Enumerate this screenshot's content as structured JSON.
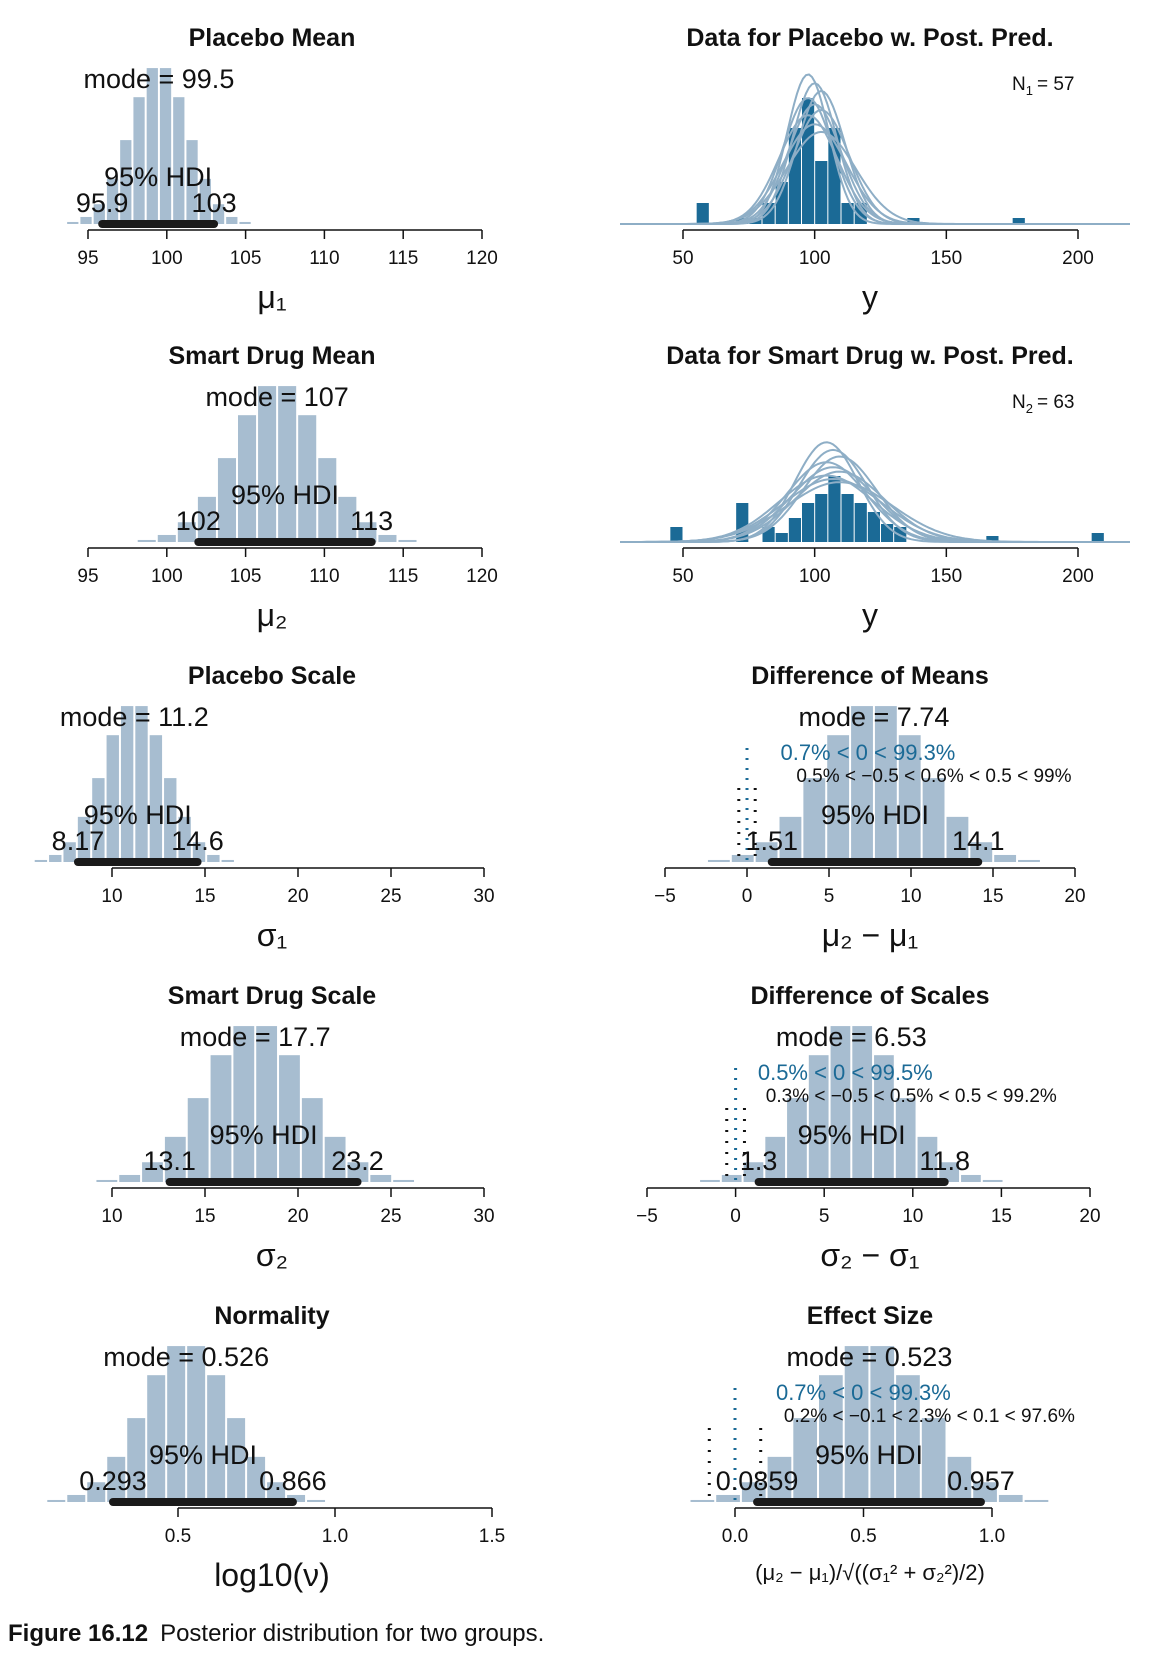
{
  "caption": {
    "label": "Figure 16.12",
    "text": "Posterior distribution for two groups."
  },
  "colors": {
    "bar": "#a7bdd0",
    "data_bar": "#1b6a96",
    "curve": "#8eaec6",
    "hdi": "#1a1a1a",
    "annotation": "#1b6a96",
    "text": "#111111"
  },
  "chart_data": [
    {
      "type": "bar",
      "title": "Placebo Mean",
      "xlabel": "μ₁",
      "xlim": [
        95,
        120
      ],
      "xticks": [
        "95",
        "100",
        "105",
        "110",
        "115",
        "120"
      ],
      "mode_text": "mode = 99.5",
      "mode": 99.5,
      "sd": 1.85,
      "hdi_text": "95% HDI",
      "hdi": [
        95.9,
        103
      ],
      "hdi_labels": [
        "95.9",
        "103"
      ]
    },
    {
      "type": "bar",
      "title": "Data for Placebo w. Post. Pred.",
      "xlabel": "y",
      "xlim": [
        40,
        225
      ],
      "xticks": [
        "50",
        "100",
        "150",
        "200"
      ],
      "n_label": "N",
      "n_sub": "1",
      "n_value": "= 57",
      "data_bins": {
        "edges": [
          50,
          55,
          60,
          65,
          70,
          75,
          80,
          85,
          90,
          95,
          100,
          105,
          110,
          115,
          120,
          125,
          130,
          135,
          140,
          145,
          150,
          155,
          160,
          165,
          170,
          175,
          180,
          185
        ],
        "density": [
          0,
          0.007,
          0,
          0,
          0.002,
          0.002,
          0.007,
          0.014,
          0.032,
          0.042,
          0.021,
          0.032,
          0.007,
          0.007,
          0,
          0,
          0,
          0.002,
          0,
          0,
          0,
          0,
          0,
          0,
          0,
          0.002,
          0
        ]
      },
      "pred_curves": {
        "mean": 100,
        "sd_values": [
          8,
          8.5,
          9,
          9.5,
          10,
          10.5,
          11,
          12,
          13
        ]
      }
    },
    {
      "type": "bar",
      "title": "Smart Drug Mean",
      "xlabel": "μ₂",
      "xlim": [
        95,
        120
      ],
      "xticks": [
        "95",
        "100",
        "105",
        "110",
        "115",
        "120"
      ],
      "mode_text": "mode = 107",
      "mode": 107,
      "sd": 2.8,
      "hdi_text": "95% HDI",
      "hdi": [
        102,
        113
      ],
      "hdi_labels": [
        "102",
        "113"
      ]
    },
    {
      "type": "bar",
      "title": "Data for Smart Drug w. Post. Pred.",
      "xlabel": "y",
      "xlim": [
        40,
        225
      ],
      "xticks": [
        "50",
        "100",
        "150",
        "200"
      ],
      "n_label": "N",
      "n_sub": "2",
      "n_value": "= 63",
      "data_bins": {
        "edges": [
          45,
          50,
          55,
          60,
          65,
          70,
          75,
          80,
          85,
          90,
          95,
          100,
          105,
          110,
          115,
          120,
          125,
          130,
          135,
          140,
          145,
          150,
          155,
          160,
          165,
          170,
          175,
          180,
          185,
          190,
          195,
          200,
          205,
          210
        ],
        "density": [
          0.005,
          0,
          0,
          0,
          0,
          0.013,
          0,
          0.005,
          0.003,
          0.008,
          0.013,
          0.016,
          0.022,
          0.016,
          0.013,
          0.01,
          0.006,
          0.005,
          0,
          0,
          0,
          0,
          0,
          0,
          0.002,
          0,
          0,
          0,
          0,
          0,
          0,
          0,
          0.003
        ]
      },
      "pred_curves": {
        "mean": 107,
        "sd_values": [
          12,
          13,
          14,
          15,
          16,
          17,
          18,
          19,
          20
        ]
      }
    },
    {
      "type": "bar",
      "title": "Placebo Scale",
      "xlabel": "σ₁",
      "xlim": [
        5,
        30
      ],
      "xticks": [
        "10",
        "15",
        "20",
        "25",
        "30"
      ],
      "mode_text": "mode = 11.2",
      "mode": 11.2,
      "sd": 1.7,
      "hdi_text": "95% HDI",
      "hdi": [
        8.17,
        14.6
      ],
      "hdi_labels": [
        "8.17",
        "14.6"
      ]
    },
    {
      "type": "bar",
      "title": "Difference of Means",
      "xlabel": "μ₂ − μ₁",
      "xlim": [
        -5,
        20
      ],
      "xticks": [
        "−5",
        "0",
        "5",
        "10",
        "15",
        "20"
      ],
      "mode_text": "mode = 7.74",
      "mode": 7.74,
      "sd": 3.2,
      "hdi_text": "95% HDI",
      "hdi": [
        1.51,
        14.1
      ],
      "hdi_labels": [
        "1.51",
        "14.1"
      ],
      "comp_text": "0.7% < 0 < 99.3%",
      "rope_text": "0.5% < −0.5 < 0.6% < 0.5 < 99%",
      "comp_value": 0,
      "rope": [
        -0.5,
        0.5
      ]
    },
    {
      "type": "bar",
      "title": "Smart Drug Scale",
      "xlabel": "σ₂",
      "xlim": [
        5,
        30
      ],
      "xticks": [
        "10",
        "15",
        "20",
        "25",
        "30"
      ],
      "mode_text": "mode = 17.7",
      "mode": 17.7,
      "sd": 2.7,
      "hdi_text": "95% HDI",
      "hdi": [
        13.1,
        23.2
      ],
      "hdi_labels": [
        "13.1",
        "23.2"
      ]
    },
    {
      "type": "bar",
      "title": "Difference of Scales",
      "xlabel": "σ₂ − σ₁",
      "xlim": [
        -5,
        20
      ],
      "xticks": [
        "−5",
        "0",
        "5",
        "10",
        "15",
        "20"
      ],
      "mode_text": "mode = 6.53",
      "mode": 6.53,
      "sd": 2.7,
      "hdi_text": "95% HDI",
      "hdi": [
        1.3,
        11.8
      ],
      "hdi_labels": [
        "1.3",
        "11.8"
      ],
      "comp_text": "0.5% < 0 < 99.5%",
      "rope_text": "0.3% < −0.5 < 0.5% < 0.5 < 99.2%",
      "comp_value": 0,
      "rope": [
        -0.5,
        0.5
      ]
    },
    {
      "type": "bar",
      "title": "Normality",
      "xlabel": "log10(ν)",
      "xlim": [
        0.2,
        1.5
      ],
      "xticks": [
        "0.5",
        "1.0",
        "1.5"
      ],
      "mode_text": "mode = 0.526",
      "mode": 0.526,
      "sd": 0.14,
      "hdi_text": "95% HDI",
      "hdi": [
        0.293,
        0.866
      ],
      "hdi_labels": [
        "0.293",
        "0.866"
      ]
    },
    {
      "type": "bar",
      "title": "Effect Size",
      "xlabel": "(μ₂ − μ₁)/√((σ₁² + σ₂²)/2)",
      "xlim": [
        -0.05,
        1.15
      ],
      "xticks": [
        "0.0",
        "0.5",
        "1.0"
      ],
      "mode_text": "mode = 0.523",
      "mode": 0.523,
      "sd": 0.22,
      "hdi_text": "95% HDI",
      "hdi": [
        0.0859,
        0.957
      ],
      "hdi_labels": [
        "0.0859",
        "0.957"
      ],
      "comp_text": "0.7% < 0 < 99.3%",
      "rope_text": "0.2% < −0.1 < 2.3% < 0.1 < 97.6%",
      "comp_value": 0,
      "rope": [
        -0.1,
        0.1
      ]
    }
  ]
}
